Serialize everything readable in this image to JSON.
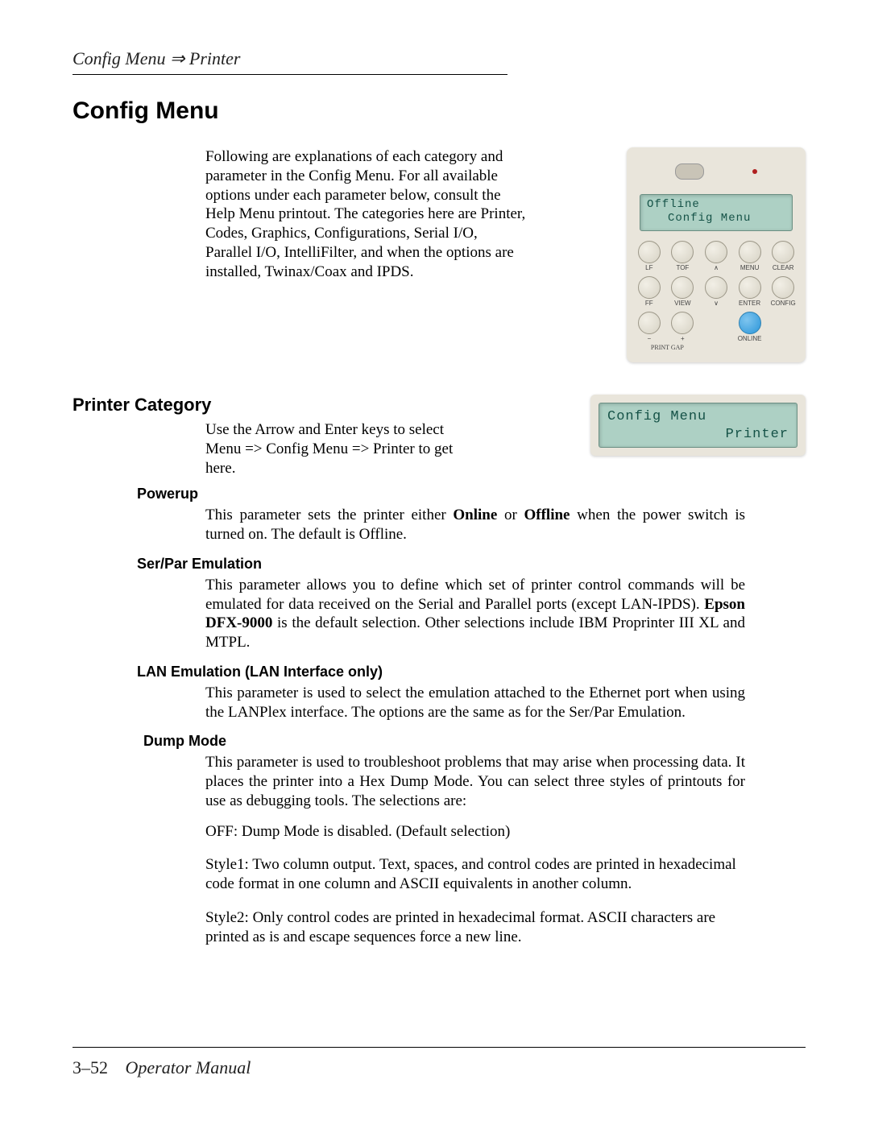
{
  "breadcrumb": "Config Menu ⇒ Printer",
  "h1": "Config Menu",
  "intro": "Following are explanations of each category and parameter in the Config Menu. For all available options under each parameter below, consult the Help Menu printout. The categories here are Printer, Codes, Graphics, Configurations, Serial I/O, Parallel I/O, IntelliFilter, and when the options are installed, Twinax/Coax and IPDS.",
  "printer_category": {
    "heading": "Printer Category",
    "intro": "Use the Arrow and Enter keys to select Menu => Config Menu => Printer to get here."
  },
  "params": {
    "powerup": {
      "heading": "Powerup",
      "pre": "This parameter sets the printer either ",
      "b1": "Online",
      "mid": " or ",
      "b2": "Offline",
      "post": " when the power switch is turned on. The default is Offline."
    },
    "serpar": {
      "heading": "Ser/Par Emulation",
      "pre": "This parameter allows you to define which set of printer control commands will be emulated for data received on the Serial and Parallel ports (except LAN-IPDS). ",
      "b1": "Epson DFX-9000",
      "post": " is the default selection. Other selections include IBM Proprinter III XL and MTPL."
    },
    "lan": {
      "heading": "LAN Emulation (LAN Interface only)",
      "body": "This parameter is used to select the emulation attached to the Ethernet port when using the LANPlex interface. The options are the same as for the Ser/Par Emulation."
    },
    "dump": {
      "heading": "Dump Mode",
      "body": "This parameter is used to troubleshoot problems that may arise when processing data.  It places the printer into a Hex Dump Mode.  You can select three styles of printouts for use as debugging tools. The selections are:",
      "off": "OFF:   Dump Mode is disabled.  (Default selection)",
      "style1": "Style1:  Two column output.  Text, spaces, and control codes are printed in hexadecimal code format in one column and  ASCII equivalents in another column.",
      "style2": "Style2:  Only control codes are printed in hexadecimal format.  ASCII characters are printed as is and escape sequences force a new line."
    }
  },
  "panel": {
    "lcd_line1": "Offline",
    "lcd_line2": "Config Menu",
    "row1": [
      "LF",
      "TOF",
      "∧",
      "MENU",
      "CLEAR"
    ],
    "row2": [
      "FF",
      "VIEW",
      "∨",
      "ENTER",
      "CONFIG"
    ],
    "row3_labels": [
      "−",
      "+",
      "",
      "",
      "ONLINE"
    ],
    "printgap": "PRINT GAP"
  },
  "small_panel": {
    "line1": "Config Menu",
    "line2": "Printer"
  },
  "footer": {
    "page": "3–52",
    "title": "Operator Manual"
  },
  "colors": {
    "panel_bg": "#e9e5db",
    "lcd_bg": "#add0c4",
    "lcd_text": "#155247",
    "blue_btn": "#2a95d9",
    "red_led": "#b02020",
    "text": "#000000"
  }
}
